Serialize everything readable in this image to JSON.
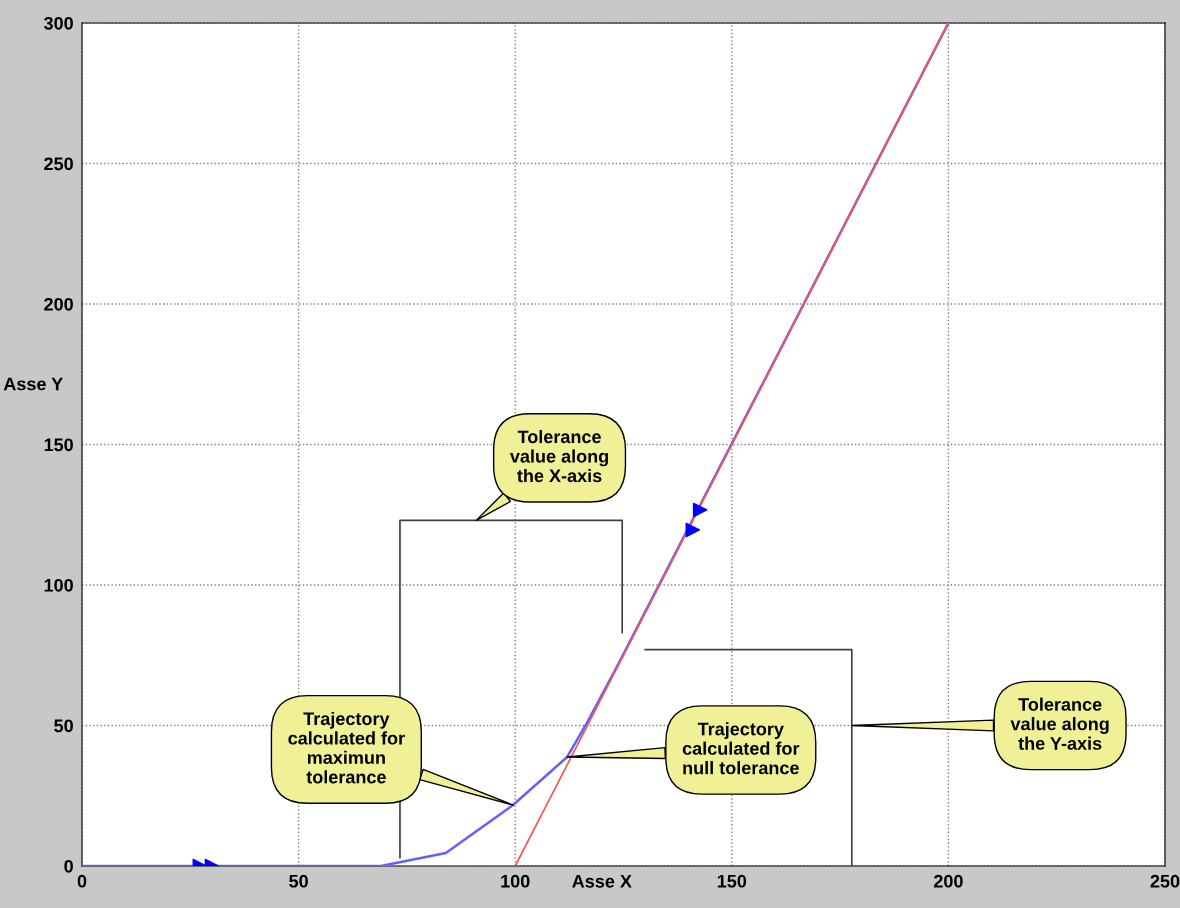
{
  "chart_data": {
    "type": "line",
    "xlabel": "Asse X",
    "ylabel": "Asse Y",
    "xlim": [
      0,
      250
    ],
    "ylim": [
      0,
      300
    ],
    "xticks": [
      0,
      50,
      100,
      150,
      200,
      250
    ],
    "yticks": [
      0,
      50,
      100,
      150,
      200,
      250,
      300
    ],
    "grid": true,
    "line_style": "solid",
    "marker": "none",
    "series": [
      {
        "color": "#ff5050",
        "x": [
          69,
          100,
          200
        ],
        "values": [
          0,
          0,
          300
        ]
      },
      {
        "color": "#6060ff",
        "x": [
          0,
          69,
          84,
          99.5,
          112,
          116.6,
          123.5,
          200
        ],
        "values": [
          0,
          0,
          4.6,
          21.7,
          38.8,
          51,
          71,
          300
        ]
      },
      {
        "type": "scatter",
        "marker": "triangle",
        "color": "#0000ff",
        "x": [
          27.2,
          30,
          141,
          142.7
        ],
        "values": [
          0,
          0,
          119.6,
          126.7
        ]
      },
      {
        "color": "#404040",
        "x": [
          73.4,
          73.4,
          124.7,
          124.7
        ],
        "values": [
          3,
          123,
          123,
          83
        ]
      },
      {
        "color": "#404040",
        "x": [
          130,
          177.7,
          177.7
        ],
        "values": [
          77,
          77,
          0
        ]
      }
    ],
    "annotations": [
      {
        "text": "Tolerance\nvalue along\nthe X-axis",
        "x": 91,
        "y": 123
      },
      {
        "text": "Trajectory\ncalculated for\nmaximun\ntolerance",
        "x": 99.5,
        "y": 21.7
      },
      {
        "text": "Trajectory\ncalculated for\nnull tolerance",
        "x": 112,
        "y": 38.8
      },
      {
        "text": "Tolerance\nvalue along\nthe Y-axis",
        "x": 177.7,
        "y": 50
      }
    ]
  }
}
